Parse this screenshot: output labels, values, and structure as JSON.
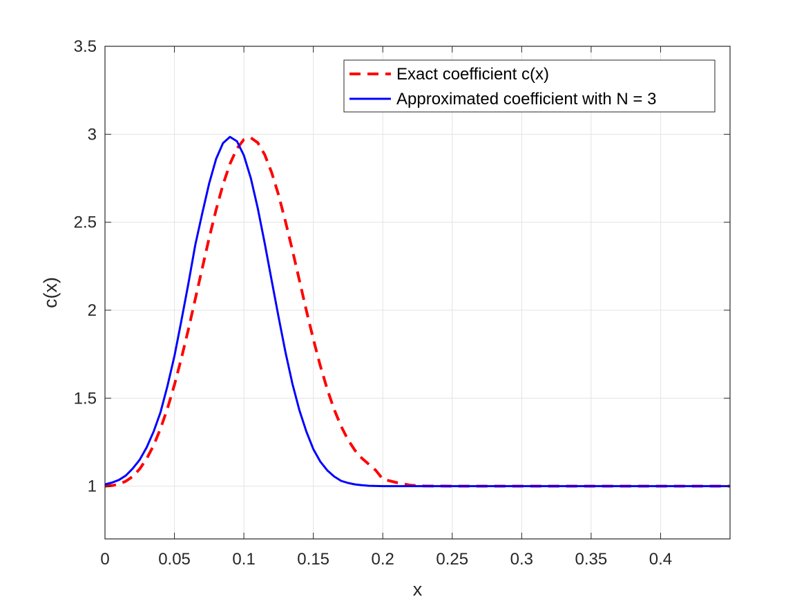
{
  "chart_data": {
    "type": "line",
    "title": "",
    "xlabel": "x",
    "ylabel": "c(x)",
    "xlim": [
      0,
      0.45
    ],
    "ylim": [
      0.7,
      3.5
    ],
    "xticks": [
      0,
      0.05,
      0.1,
      0.15,
      0.2,
      0.25,
      0.3,
      0.35,
      0.4
    ],
    "xtick_labels": [
      "0",
      "0.05",
      "0.1",
      "0.15",
      "0.2",
      "0.25",
      "0.3",
      "0.35",
      "0.4"
    ],
    "yticks": [
      1,
      1.5,
      2,
      2.5,
      3,
      3.5
    ],
    "ytick_labels": [
      "1",
      "1.5",
      "2",
      "2.5",
      "3",
      "3.5"
    ],
    "grid": true,
    "legend_position": "top-right",
    "series": [
      {
        "name": "Exact coefficient c(x)",
        "color": "#ff0000",
        "style": "dashed",
        "x": [
          0,
          0.005,
          0.01,
          0.015,
          0.02,
          0.025,
          0.03,
          0.035,
          0.04,
          0.045,
          0.05,
          0.055,
          0.06,
          0.065,
          0.07,
          0.075,
          0.08,
          0.085,
          0.09,
          0.095,
          0.1,
          0.105,
          0.11,
          0.115,
          0.12,
          0.125,
          0.13,
          0.135,
          0.14,
          0.145,
          0.15,
          0.155,
          0.16,
          0.165,
          0.17,
          0.175,
          0.18,
          0.185,
          0.19,
          0.195,
          0.2,
          0.21,
          0.22,
          0.23,
          0.25,
          0.3,
          0.35,
          0.4,
          0.45
        ],
        "y": [
          1.0,
          1.003,
          1.011,
          1.028,
          1.055,
          1.098,
          1.156,
          1.231,
          1.327,
          1.442,
          1.576,
          1.726,
          1.89,
          2.063,
          2.238,
          2.41,
          2.571,
          2.714,
          2.832,
          2.919,
          2.97,
          2.98,
          2.952,
          2.884,
          2.783,
          2.654,
          2.503,
          2.339,
          2.168,
          1.998,
          1.835,
          1.685,
          1.551,
          1.436,
          1.34,
          1.263,
          1.203,
          1.158,
          1.124,
          1.089,
          1.04,
          1.02,
          1.005,
          1.001,
          1.0,
          1.0,
          1.0,
          1.0,
          1.0
        ]
      },
      {
        "name": "Approximated coefficient with N = 3",
        "color": "#0000ff",
        "style": "solid",
        "x": [
          0,
          0.005,
          0.01,
          0.015,
          0.02,
          0.025,
          0.03,
          0.035,
          0.04,
          0.045,
          0.05,
          0.055,
          0.06,
          0.065,
          0.07,
          0.075,
          0.08,
          0.085,
          0.09,
          0.095,
          0.1,
          0.105,
          0.11,
          0.115,
          0.12,
          0.125,
          0.13,
          0.135,
          0.14,
          0.145,
          0.15,
          0.155,
          0.16,
          0.165,
          0.17,
          0.175,
          0.18,
          0.185,
          0.19,
          0.195,
          0.2,
          0.21,
          0.22,
          0.25,
          0.3,
          0.35,
          0.4,
          0.45
        ],
        "y": [
          1.01,
          1.02,
          1.035,
          1.06,
          1.1,
          1.15,
          1.22,
          1.31,
          1.42,
          1.57,
          1.74,
          1.94,
          2.15,
          2.37,
          2.55,
          2.72,
          2.86,
          2.95,
          2.985,
          2.96,
          2.88,
          2.75,
          2.58,
          2.38,
          2.17,
          1.96,
          1.76,
          1.58,
          1.43,
          1.31,
          1.21,
          1.14,
          1.09,
          1.055,
          1.03,
          1.018,
          1.01,
          1.005,
          1.002,
          1.001,
          1.0,
          1.0,
          1.0,
          1.0,
          1.0,
          1.0,
          1.0,
          1.0
        ]
      }
    ]
  }
}
